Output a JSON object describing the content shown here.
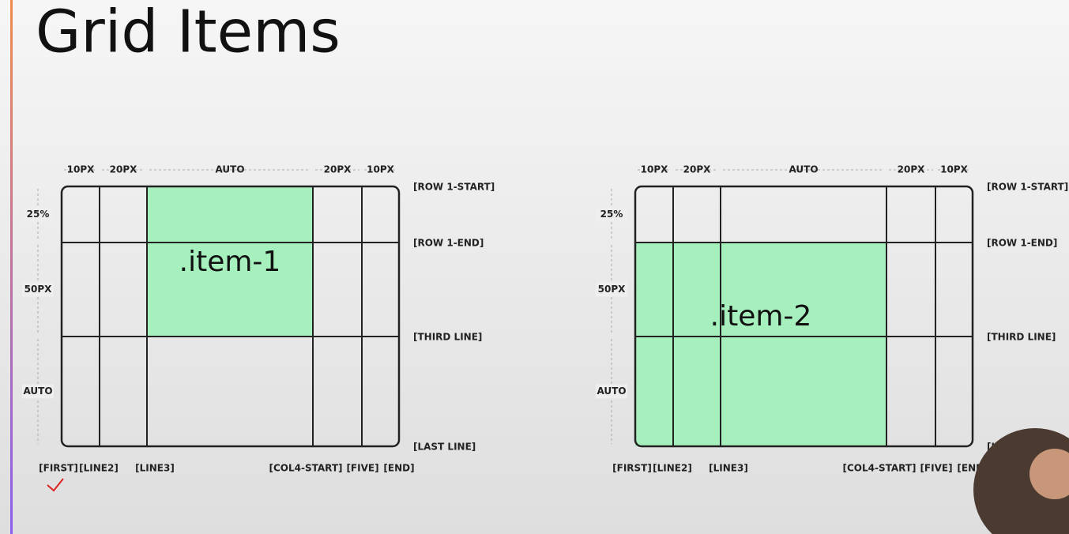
{
  "title": "Grid Items",
  "diagrams": [
    {
      "column_sizes": [
        "10PX",
        "20PX",
        "AUTO",
        "20PX",
        "10PX"
      ],
      "row_sizes": [
        "25%",
        "50PX",
        "AUTO"
      ],
      "row_lines": [
        "[ROW 1-START]",
        "[ROW 1-END]",
        "[THIRD LINE]",
        "[LAST LINE]"
      ],
      "column_lines": [
        "[FIRST]",
        "[LINE2]",
        "[LINE3]",
        "[COL4-START]",
        "[FIVE]",
        "[END]"
      ],
      "item": ".item-1"
    },
    {
      "column_sizes": [
        "10PX",
        "20PX",
        "AUTO",
        "20PX",
        "10PX"
      ],
      "row_sizes": [
        "25%",
        "50PX",
        "AUTO"
      ],
      "row_lines": [
        "[ROW 1-START]",
        "[ROW 1-END]",
        "[THIRD LINE]",
        "[LAST LINE]"
      ],
      "column_lines": [
        "[FIRST]",
        "[LINE2]",
        "[LINE3]",
        "[COL4-START]",
        "[FIVE]",
        "[END]"
      ],
      "item": ".item-2"
    }
  ]
}
